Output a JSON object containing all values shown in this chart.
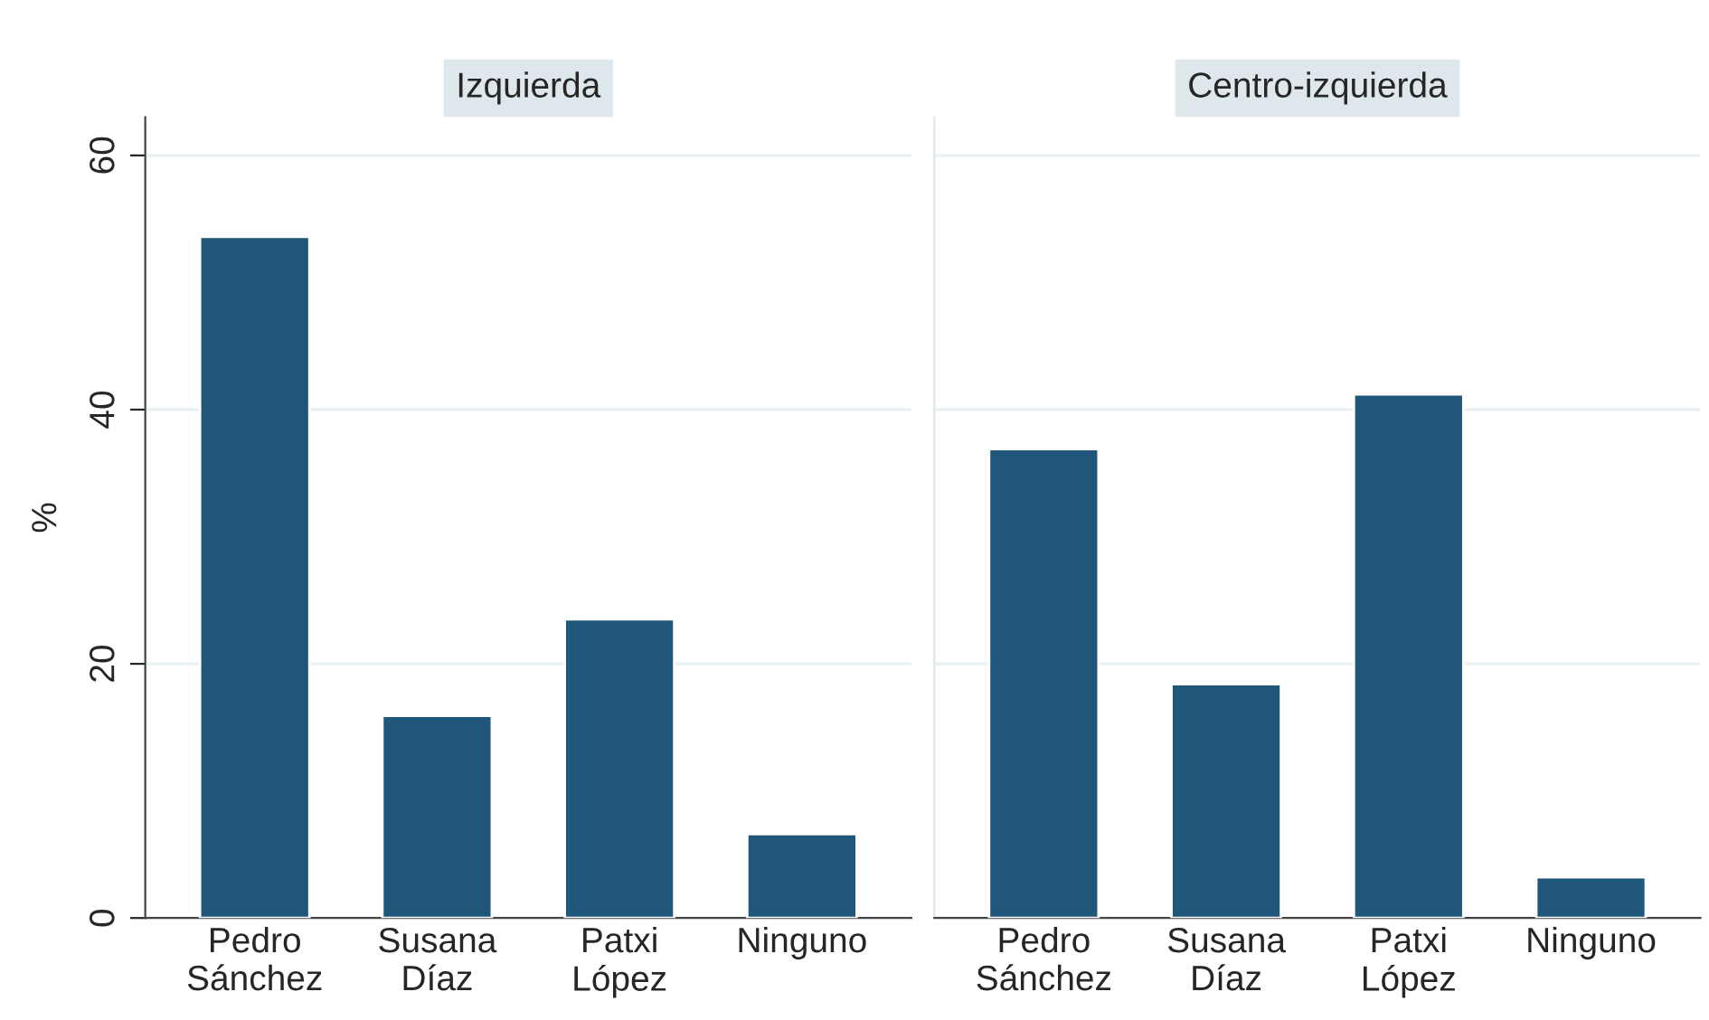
{
  "chart_data": [
    {
      "type": "bar",
      "title": "Izquierda",
      "ylabel": "%",
      "categories": [
        "Pedro\nSánchez",
        "Susana\nDíaz",
        "Patxi\nLópez",
        "Ninguno"
      ],
      "values": [
        53.6,
        15.9,
        23.5,
        6.6
      ],
      "color": "#1f567a",
      "ylim": [
        0,
        63
      ],
      "yticks": [
        0,
        20,
        40,
        60
      ],
      "grid": "y"
    },
    {
      "type": "bar",
      "title": "Centro-izquierda",
      "categories": [
        "Pedro\nSánchez",
        "Susana\nDíaz",
        "Patxi\nLópez",
        "Ninguno"
      ],
      "values": [
        36.9,
        18.4,
        41.2,
        3.2
      ],
      "color": "#1f567a",
      "ylim": [
        0,
        63
      ],
      "yticks": [
        0,
        20,
        40,
        60
      ],
      "grid": "y",
      "tick_labels": "x"
    }
  ]
}
